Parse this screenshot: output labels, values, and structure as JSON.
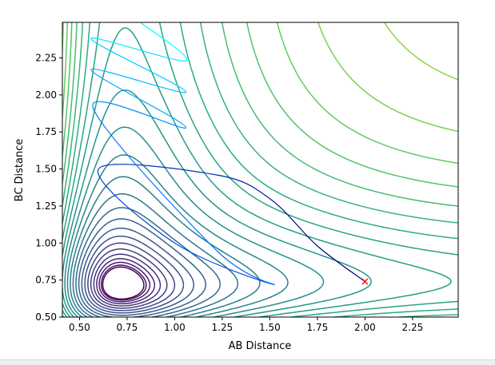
{
  "chart_data": {
    "type": "contour",
    "title": "",
    "xlabel": "AB Distance",
    "ylabel": "BC Distance",
    "xlim": [
      0.41,
      2.49
    ],
    "ylim": [
      0.5,
      2.49
    ],
    "xticks": [
      0.5,
      0.75,
      1.0,
      1.25,
      1.5,
      1.75,
      2.0,
      2.25
    ],
    "xtick_labels": [
      "0.50",
      "0.75",
      "1.00",
      "1.25",
      "1.50",
      "1.75",
      "2.00",
      "2.25"
    ],
    "yticks": [
      0.5,
      0.75,
      1.0,
      1.25,
      1.5,
      1.75,
      2.0,
      2.25
    ],
    "ytick_labels": [
      "0.50",
      "0.75",
      "1.00",
      "1.25",
      "1.50",
      "1.75",
      "2.00",
      "2.25"
    ],
    "grid": false,
    "colormap": [
      "#440154",
      "#472f7d",
      "#3b528b",
      "#2c728e",
      "#21918c",
      "#28ae80",
      "#5ec962",
      "#addc30",
      "#fde725"
    ],
    "contour_levels": 30,
    "trajectory": {
      "color_start": "#00007f",
      "color_end": "#00ffff",
      "points": [
        [
          2.0,
          0.74
        ],
        [
          1.75,
          0.98
        ],
        [
          1.5,
          1.3
        ],
        [
          1.22,
          1.46
        ],
        [
          0.6,
          1.5
        ],
        [
          1.0,
          1.0
        ],
        [
          1.52,
          0.72
        ],
        [
          1.22,
          0.95
        ],
        [
          0.57,
          1.92
        ],
        [
          1.06,
          1.78
        ],
        [
          0.56,
          2.17
        ],
        [
          1.06,
          2.02
        ],
        [
          0.56,
          2.38
        ],
        [
          1.06,
          2.23
        ],
        [
          0.82,
          2.49
        ]
      ]
    },
    "start_marker": {
      "x": 2.0,
      "y": 0.74,
      "symbol": "x",
      "color": "#ff0000"
    }
  }
}
